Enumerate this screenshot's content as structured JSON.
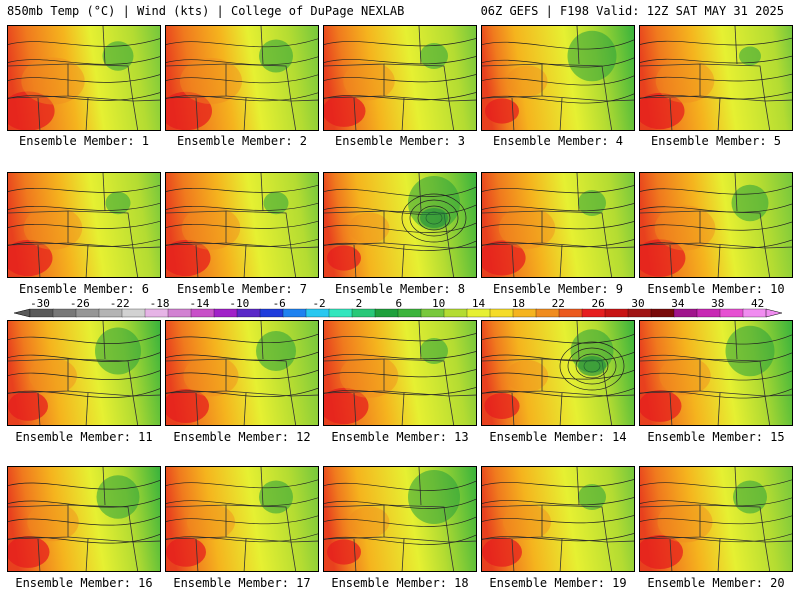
{
  "header": {
    "left": "850mb Temp (°C) | Wind (kts) | College of DuPage NEXLAB",
    "right": "06Z GEFS | F198 Valid: 12Z SAT MAY 31 2025"
  },
  "members": [
    {
      "label": "Ensemble Member: 1",
      "warm": 0.62,
      "trough": 0.25,
      "low": false
    },
    {
      "label": "Ensemble Member: 2",
      "warm": 0.6,
      "trough": 0.3,
      "low": false
    },
    {
      "label": "Ensemble Member: 3",
      "warm": 0.45,
      "trough": 0.2,
      "low": false
    },
    {
      "label": "Ensemble Member: 4",
      "warm": 0.3,
      "trough": 0.55,
      "low": false
    },
    {
      "label": "Ensemble Member: 5",
      "warm": 0.55,
      "trough": 0.1,
      "low": false
    },
    {
      "label": "Ensemble Member: 6",
      "warm": 0.55,
      "trough": 0.15,
      "low": false
    },
    {
      "label": "Ensemble Member: 7",
      "warm": 0.55,
      "trough": 0.15,
      "low": false
    },
    {
      "label": "Ensemble Member: 8",
      "warm": 0.3,
      "trough": 0.6,
      "low": true
    },
    {
      "label": "Ensemble Member: 9",
      "warm": 0.52,
      "trough": 0.2,
      "low": false
    },
    {
      "label": "Ensemble Member: 10",
      "warm": 0.58,
      "trough": 0.35,
      "low": false
    },
    {
      "label": "Ensemble Member: 11",
      "warm": 0.4,
      "trough": 0.5,
      "low": false
    },
    {
      "label": "Ensemble Member: 12",
      "warm": 0.5,
      "trough": 0.4,
      "low": false
    },
    {
      "label": "Ensemble Member: 13",
      "warm": 0.55,
      "trough": 0.2,
      "low": false
    },
    {
      "label": "Ensemble Member: 14",
      "warm": 0.32,
      "trough": 0.45,
      "low": true
    },
    {
      "label": "Ensemble Member: 15",
      "warm": 0.45,
      "trough": 0.55,
      "low": false
    },
    {
      "label": "Ensemble Member: 16",
      "warm": 0.45,
      "trough": 0.45,
      "low": false
    },
    {
      "label": "Ensemble Member: 17",
      "warm": 0.4,
      "trough": 0.3,
      "low": false
    },
    {
      "label": "Ensemble Member: 18",
      "warm": 0.3,
      "trough": 0.6,
      "low": false
    },
    {
      "label": "Ensemble Member: 19",
      "warm": 0.4,
      "trough": 0.2,
      "low": false
    },
    {
      "label": "Ensemble Member: 20",
      "warm": 0.5,
      "trough": 0.3,
      "low": false
    }
  ],
  "colorbar": {
    "ticks": [
      "-30",
      "-26",
      "-22",
      "-18",
      "-14",
      "-10",
      "-6",
      "-2",
      "2",
      "6",
      "10",
      "14",
      "18",
      "22",
      "26",
      "30",
      "34",
      "38",
      "42"
    ],
    "colors": [
      "#5a5a5a",
      "#787878",
      "#969696",
      "#b4b4b4",
      "#d2d2d2",
      "#e6b4e6",
      "#d282d2",
      "#c850c8",
      "#a020c8",
      "#5a28c8",
      "#1e3cdc",
      "#1e82f0",
      "#28c8f0",
      "#32e6be",
      "#28c878",
      "#1ea03c",
      "#3cb43c",
      "#78c83c",
      "#b4dc32",
      "#e6f032",
      "#f5dc28",
      "#f5b41e",
      "#f08c1e",
      "#eb5a1e",
      "#e61e1e",
      "#c81414",
      "#a01414",
      "#780a0a",
      "#a0148c",
      "#c828b4",
      "#e650d2",
      "#f08cf0"
    ]
  }
}
